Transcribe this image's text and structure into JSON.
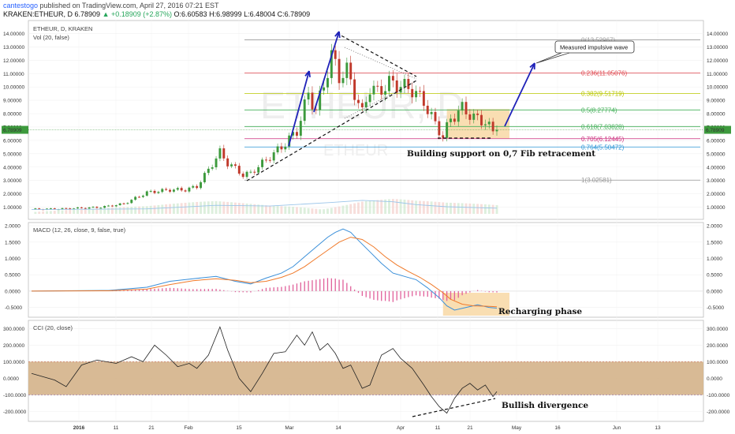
{
  "header": {
    "user": "cantestogo",
    "published": " published on TradingView.com, April 27, 2016 07:21 EST",
    "symbol_line": "KRAKEN:ETHEUR, D  6.78909",
    "change": "▲ +0.18909 (+2.87%)",
    "ohlc": " O:6.60583 H:6.98999 L:6.48004 C:6.78909"
  },
  "price_pane": {
    "title": "ETHEUR, D, KRAKEN",
    "subtitle": "Vol (20, false)",
    "watermark_big": "ETHEUR, D",
    "watermark_small": "ETHEUR",
    "last_price_tag": "6.78909",
    "yticks": [
      "14.00000",
      "13.00000",
      "12.00000",
      "11.00000",
      "10.00000",
      "9.00000",
      "8.00000",
      "7.00000",
      "6.00000",
      "5.00000",
      "4.00000",
      "3.00000",
      "2.00000",
      "1.00000"
    ],
    "callout": "Measured impulsive wave",
    "annotation": "Building support on 0,7 Fib retracement",
    "colors": {
      "up": "#3d9a3d",
      "down": "#c0392b",
      "impulse": "#1f22b8",
      "box": "#f8d8a4"
    }
  },
  "fib_levels": [
    {
      "label": "0(13.52967)",
      "value": 13.52967,
      "color": "#999999"
    },
    {
      "label": "0.236(11.05076)",
      "value": 11.05076,
      "color": "#e0454d"
    },
    {
      "label": "0.382(9.51719)",
      "value": 9.51719,
      "color": "#b9c700"
    },
    {
      "label": "0.5(8.27774)",
      "value": 8.27774,
      "color": "#44b05a"
    },
    {
      "label": "0.618(7.03828)",
      "value": 7.03828,
      "color": "#44b05a"
    },
    {
      "label": "0.705(6.12445)",
      "value": 6.12445,
      "color": "#cc2f7e"
    },
    {
      "label": "0.764(5.50472)",
      "value": 5.50472,
      "color": "#2a93d5"
    },
    {
      "label": "1(3.02581)",
      "value": 3.02581,
      "color": "#999999"
    }
  ],
  "macd_pane": {
    "title": "MACD (12, 26, close, 9, false, true)",
    "yticks": [
      "2.0000",
      "1.5000",
      "1.0000",
      "0.5000",
      "0.0000",
      "-0.5000"
    ],
    "annotation": "Recharging phase",
    "colors": {
      "macd": "#3a8fd9",
      "signal": "#f07a2a",
      "hist": "#e0609a"
    }
  },
  "cci_pane": {
    "title": "CCI (20, close)",
    "yticks": [
      "300.0000",
      "200.0000",
      "100.0000",
      "0.0000",
      "-100.0000",
      "-200.0000"
    ],
    "annotation": "Bullish divergence",
    "colors": {
      "band": "#d4b38a",
      "line": "#222222"
    }
  },
  "xaxis": {
    "labels": [
      "2016",
      "11",
      "21",
      "Feb",
      "15",
      "Mar",
      "14",
      "Apr",
      "11",
      "21",
      "May",
      "16",
      "Jun",
      "13"
    ]
  },
  "chart_data": [
    {
      "type": "candlestick",
      "title": "ETHEUR, D, KRAKEN",
      "ylim": [
        0.5,
        14.5
      ],
      "segments_close": [
        [
          0,
          0.85
        ],
        [
          8,
          0.88
        ],
        [
          18,
          1.0
        ],
        [
          24,
          1.25
        ],
        [
          30,
          2.1
        ],
        [
          36,
          2.3
        ],
        [
          40,
          2.3
        ],
        [
          43,
          2.55
        ],
        [
          46,
          3.8
        ],
        [
          49,
          5.1
        ],
        [
          51,
          4.3
        ],
        [
          53,
          3.9
        ],
        [
          55,
          3.4
        ],
        [
          57,
          3.55
        ],
        [
          60,
          4.3
        ],
        [
          65,
          5.5
        ],
        [
          69,
          6.7
        ],
        [
          72,
          9.5
        ],
        [
          74,
          8.2
        ],
        [
          76,
          10.2
        ],
        [
          78,
          12.3
        ],
        [
          79,
          11.6
        ],
        [
          80,
          10.8
        ],
        [
          82,
          11.2
        ],
        [
          84,
          9.6
        ],
        [
          86,
          8.0
        ],
        [
          88,
          10.0
        ],
        [
          90,
          9.6
        ],
        [
          93,
          10.3
        ],
        [
          96,
          10.1
        ],
        [
          99,
          9.8
        ],
        [
          102,
          8.9
        ],
        [
          105,
          7.2
        ],
        [
          107,
          6.3
        ],
        [
          109,
          7.6
        ],
        [
          112,
          8.4
        ],
        [
          115,
          7.7
        ],
        [
          118,
          7.4
        ],
        [
          120,
          6.6
        ],
        [
          121,
          6.79
        ]
      ],
      "volume_ma": [
        [
          0,
          0.6
        ],
        [
          30,
          0.7
        ],
        [
          48,
          1.2
        ],
        [
          62,
          1.1
        ],
        [
          78,
          1.6
        ],
        [
          86,
          1.9
        ],
        [
          94,
          1.7
        ],
        [
          100,
          1.3
        ],
        [
          108,
          1.0
        ],
        [
          121,
          0.8
        ]
      ]
    },
    {
      "type": "line",
      "title": "MACD (12, 26, close, 9, false, true)",
      "ylim": [
        -0.75,
        2.05
      ],
      "series": [
        {
          "name": "MACD",
          "values": [
            [
              0,
              0
            ],
            [
              20,
              0.02
            ],
            [
              30,
              0.12
            ],
            [
              36,
              0.3
            ],
            [
              42,
              0.38
            ],
            [
              48,
              0.45
            ],
            [
              53,
              0.3
            ],
            [
              57,
              0.22
            ],
            [
              61,
              0.4
            ],
            [
              65,
              0.55
            ],
            [
              68,
              0.75
            ],
            [
              71,
              1.05
            ],
            [
              74,
              1.35
            ],
            [
              77,
              1.65
            ],
            [
              79,
              1.8
            ],
            [
              81,
              1.9
            ],
            [
              83,
              1.8
            ],
            [
              85,
              1.55
            ],
            [
              88,
              1.2
            ],
            [
              91,
              0.85
            ],
            [
              94,
              0.55
            ],
            [
              97,
              0.45
            ],
            [
              100,
              0.35
            ],
            [
              103,
              0.1
            ],
            [
              106,
              -0.2
            ],
            [
              108,
              -0.45
            ],
            [
              110,
              -0.58
            ],
            [
              113,
              -0.5
            ],
            [
              116,
              -0.42
            ],
            [
              119,
              -0.5
            ],
            [
              121,
              -0.52
            ]
          ]
        },
        {
          "name": "Signal",
          "values": [
            [
              0,
              0
            ],
            [
              20,
              0.01
            ],
            [
              30,
              0.06
            ],
            [
              36,
              0.2
            ],
            [
              42,
              0.32
            ],
            [
              48,
              0.38
            ],
            [
              53,
              0.33
            ],
            [
              57,
              0.26
            ],
            [
              61,
              0.3
            ],
            [
              65,
              0.42
            ],
            [
              68,
              0.55
            ],
            [
              71,
              0.75
            ],
            [
              74,
              1.0
            ],
            [
              77,
              1.25
            ],
            [
              80,
              1.5
            ],
            [
              83,
              1.65
            ],
            [
              86,
              1.58
            ],
            [
              89,
              1.35
            ],
            [
              92,
              1.05
            ],
            [
              95,
              0.8
            ],
            [
              98,
              0.6
            ],
            [
              101,
              0.42
            ],
            [
              104,
              0.2
            ],
            [
              107,
              -0.05
            ],
            [
              109,
              -0.25
            ],
            [
              112,
              -0.4
            ],
            [
              115,
              -0.45
            ],
            [
              118,
              -0.46
            ],
            [
              121,
              -0.48
            ]
          ]
        }
      ]
    },
    {
      "type": "line",
      "title": "CCI (20, close)",
      "ylim": [
        -250,
        340
      ],
      "series": [
        {
          "name": "CCI",
          "values": [
            [
              0,
              30
            ],
            [
              6,
              -10
            ],
            [
              9,
              -50
            ],
            [
              13,
              80
            ],
            [
              17,
              110
            ],
            [
              22,
              90
            ],
            [
              26,
              130
            ],
            [
              29,
              100
            ],
            [
              32,
              200
            ],
            [
              35,
              140
            ],
            [
              38,
              70
            ],
            [
              41,
              90
            ],
            [
              43,
              60
            ],
            [
              46,
              140
            ],
            [
              49,
              310
            ],
            [
              51,
              170
            ],
            [
              54,
              0
            ],
            [
              57,
              -80
            ],
            [
              60,
              30
            ],
            [
              63,
              150
            ],
            [
              66,
              160
            ],
            [
              69,
              260
            ],
            [
              71,
              200
            ],
            [
              73,
              280
            ],
            [
              75,
              170
            ],
            [
              77,
              210
            ],
            [
              79,
              150
            ],
            [
              81,
              60
            ],
            [
              83,
              80
            ],
            [
              86,
              -60
            ],
            [
              88,
              -40
            ],
            [
              91,
              140
            ],
            [
              94,
              180
            ],
            [
              96,
              120
            ],
            [
              99,
              60
            ],
            [
              102,
              -40
            ],
            [
              104,
              -110
            ],
            [
              106,
              -170
            ],
            [
              108,
              -210
            ],
            [
              110,
              -120
            ],
            [
              112,
              -60
            ],
            [
              114,
              -30
            ],
            [
              116,
              -70
            ],
            [
              118,
              -40
            ],
            [
              120,
              -110
            ],
            [
              121,
              -80
            ]
          ]
        }
      ]
    }
  ]
}
